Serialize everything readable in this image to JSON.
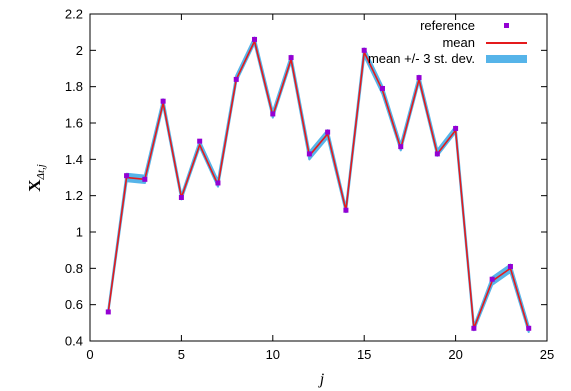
{
  "chart_data": {
    "type": "line",
    "xlabel": "j",
    "ylabel": {
      "main": "X",
      "sub": "Δt,j"
    },
    "xlim": [
      0,
      25
    ],
    "ylim": [
      0.4,
      2.2
    ],
    "xticks": [
      0,
      5,
      10,
      15,
      20,
      25
    ],
    "yticks": [
      0.4,
      0.6,
      0.8,
      1,
      1.2,
      1.4,
      1.6,
      1.8,
      2,
      2.2
    ],
    "grid": false,
    "legend_position": "top-right",
    "x": [
      1,
      2,
      3,
      4,
      5,
      6,
      7,
      8,
      9,
      10,
      11,
      12,
      13,
      14,
      15,
      16,
      17,
      18,
      19,
      20,
      21,
      22,
      23,
      24
    ],
    "series": [
      {
        "name": "reference",
        "style": "points",
        "color": "#9400d3",
        "values": [
          0.56,
          1.31,
          1.29,
          1.72,
          1.19,
          1.5,
          1.27,
          1.84,
          2.06,
          1.65,
          1.96,
          1.43,
          1.55,
          1.12,
          2.0,
          1.79,
          1.47,
          1.85,
          1.43,
          1.57,
          0.47,
          0.74,
          0.81,
          0.47
        ]
      },
      {
        "name": "mean",
        "style": "line",
        "color": "#e41a1c",
        "values": [
          0.56,
          1.3,
          1.29,
          1.71,
          1.19,
          1.48,
          1.26,
          1.84,
          2.05,
          1.64,
          1.95,
          1.42,
          1.54,
          1.12,
          1.99,
          1.78,
          1.46,
          1.84,
          1.43,
          1.56,
          0.47,
          0.73,
          0.8,
          0.46
        ]
      },
      {
        "name": "mean +/- 3 st. dev.",
        "style": "band",
        "color": "#56b4e9",
        "lower": [
          0.56,
          1.28,
          1.27,
          1.7,
          1.18,
          1.47,
          1.25,
          1.83,
          2.04,
          1.63,
          1.94,
          1.4,
          1.52,
          1.11,
          1.97,
          1.76,
          1.45,
          1.83,
          1.42,
          1.55,
          0.46,
          0.71,
          0.78,
          0.45
        ],
        "upper": [
          0.57,
          1.32,
          1.31,
          1.73,
          1.2,
          1.5,
          1.28,
          1.86,
          2.07,
          1.66,
          1.97,
          1.44,
          1.56,
          1.13,
          2.01,
          1.8,
          1.48,
          1.86,
          1.45,
          1.58,
          0.48,
          0.75,
          0.82,
          0.48
        ]
      }
    ]
  }
}
